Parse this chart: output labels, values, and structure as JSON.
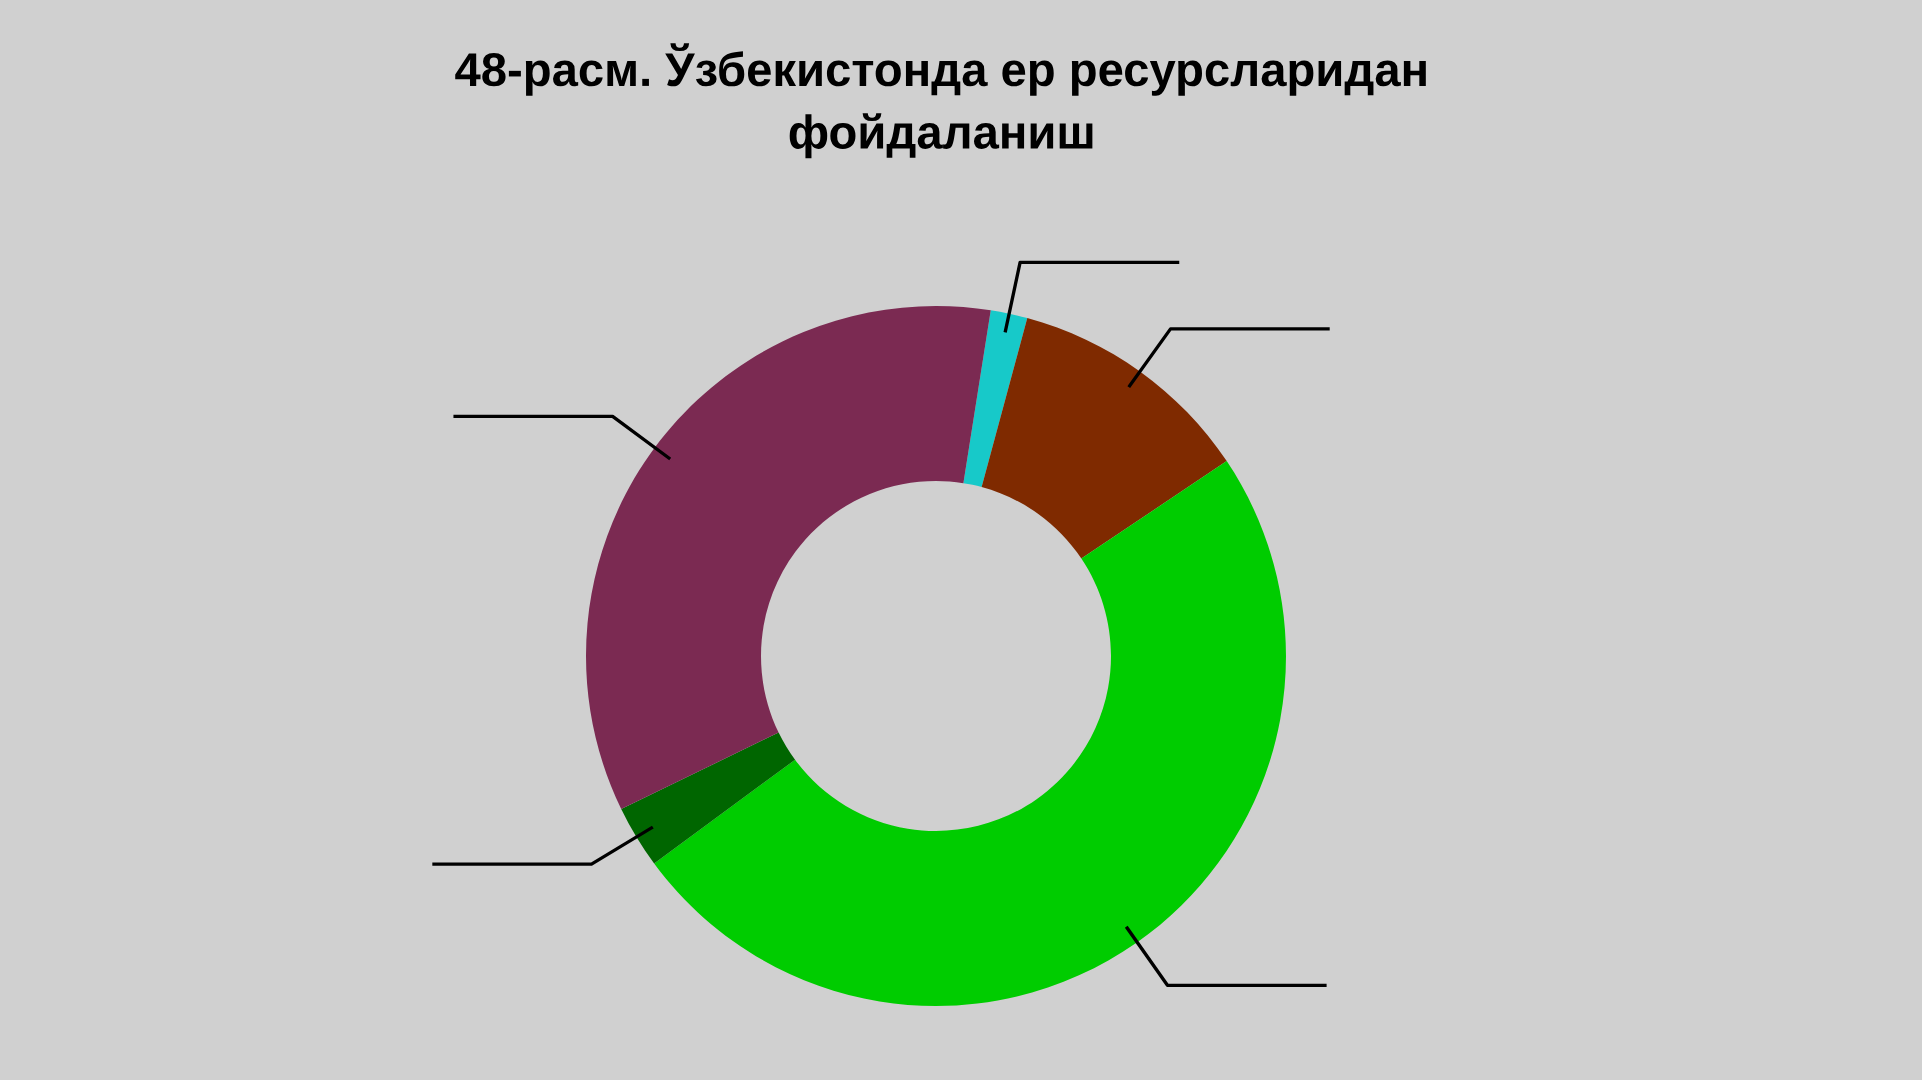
{
  "chart_data": {
    "type": "donut",
    "title": "48-расм. Ўзбекистонда ер ресурсларидан\nфойдаланиш",
    "categories": [
      null,
      null,
      null,
      null,
      null
    ],
    "values": [
      1.7,
      11.4,
      49.3,
      2.9,
      34.7
    ],
    "colors": [
      "#17c9c9",
      "#7f2a00",
      "#00cc00",
      "#006600",
      "#7b2a52"
    ]
  }
}
